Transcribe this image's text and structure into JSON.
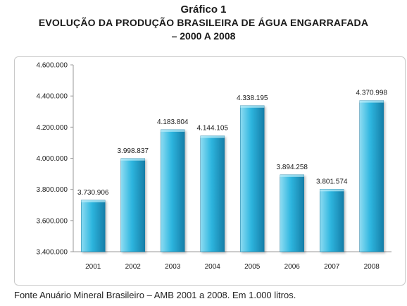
{
  "header": {
    "label": "Gráfico 1",
    "title_line1": "EVOLUÇÃO DA PRODUÇÃO BRASILEIRA DE ÁGUA ENGARRAFADA",
    "title_line2": "– 2000 A 2008"
  },
  "footer": {
    "source": "Fonte Anuário Mineral Brasileiro – AMB 2001 a 2008. Em 1.000 litros."
  },
  "colors": {
    "bar_light": "#8fdcf2",
    "bar_mid": "#2eb6df",
    "bar_dark": "#167ea8",
    "axis": "#9a9a9a",
    "text": "#1a1a1a"
  },
  "chart_data": {
    "type": "bar",
    "title": "EVOLUÇÃO DA PRODUÇÃO BRASILEIRA DE ÁGUA ENGARRAFADA – 2000 A 2008",
    "categories": [
      "2001",
      "2002",
      "2003",
      "2004",
      "2005",
      "2006",
      "2007",
      "2008"
    ],
    "values": [
      3730906,
      3998837,
      4183804,
      4144105,
      4338195,
      3894258,
      3801574,
      4370998
    ],
    "value_labels": [
      "3.730.906",
      "3.998.837",
      "4.183.804",
      "4.144.105",
      "4.338.195",
      "3.894.258",
      "3.801.574",
      "4.370.998"
    ],
    "ylim": [
      3400000,
      4600000
    ],
    "yticks": [
      3400000,
      3600000,
      3800000,
      4000000,
      4200000,
      4400000,
      4600000
    ],
    "ytick_labels": [
      "3.400.000",
      "3.600.000",
      "3.800.000",
      "4.000.000",
      "4.200.000",
      "4.400.000",
      "4.600.000"
    ],
    "xlabel": "",
    "ylabel": "",
    "grid": false,
    "legend": "none"
  }
}
